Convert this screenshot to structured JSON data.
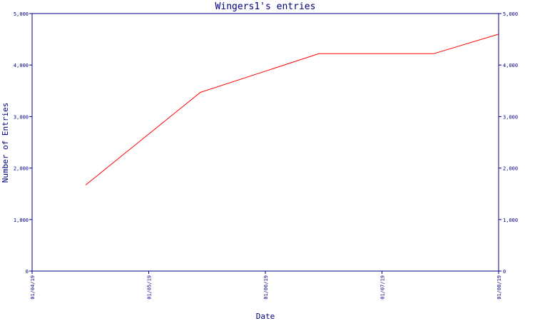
{
  "chart_data": {
    "type": "line",
    "title": "Wingers1's entries",
    "xlabel": "Date",
    "ylabel": "Number of Entries",
    "x_ticks": [
      "01/04/19",
      "01/05/19",
      "01/06/19",
      "01/07/19",
      "01/08/19"
    ],
    "x_range": [
      "2019-04-01",
      "2019-08-01"
    ],
    "y_ticks": [
      "0",
      "1,000",
      "2,000",
      "3,000",
      "4,000",
      "5,000"
    ],
    "ylim": [
      0,
      5000
    ],
    "grid": false,
    "series": [
      {
        "color": "#ff0000",
        "points": [
          {
            "x": "2019-04-15",
            "y": 1670
          },
          {
            "x": "2019-05-15",
            "y": 3470
          },
          {
            "x": "2019-06-15",
            "y": 4220
          },
          {
            "x": "2019-07-15",
            "y": 4220
          },
          {
            "x": "2019-08-01",
            "y": 4600
          }
        ]
      }
    ],
    "colors": {
      "axis": "#000080",
      "text": "#000080",
      "line": "#ff0000"
    }
  }
}
